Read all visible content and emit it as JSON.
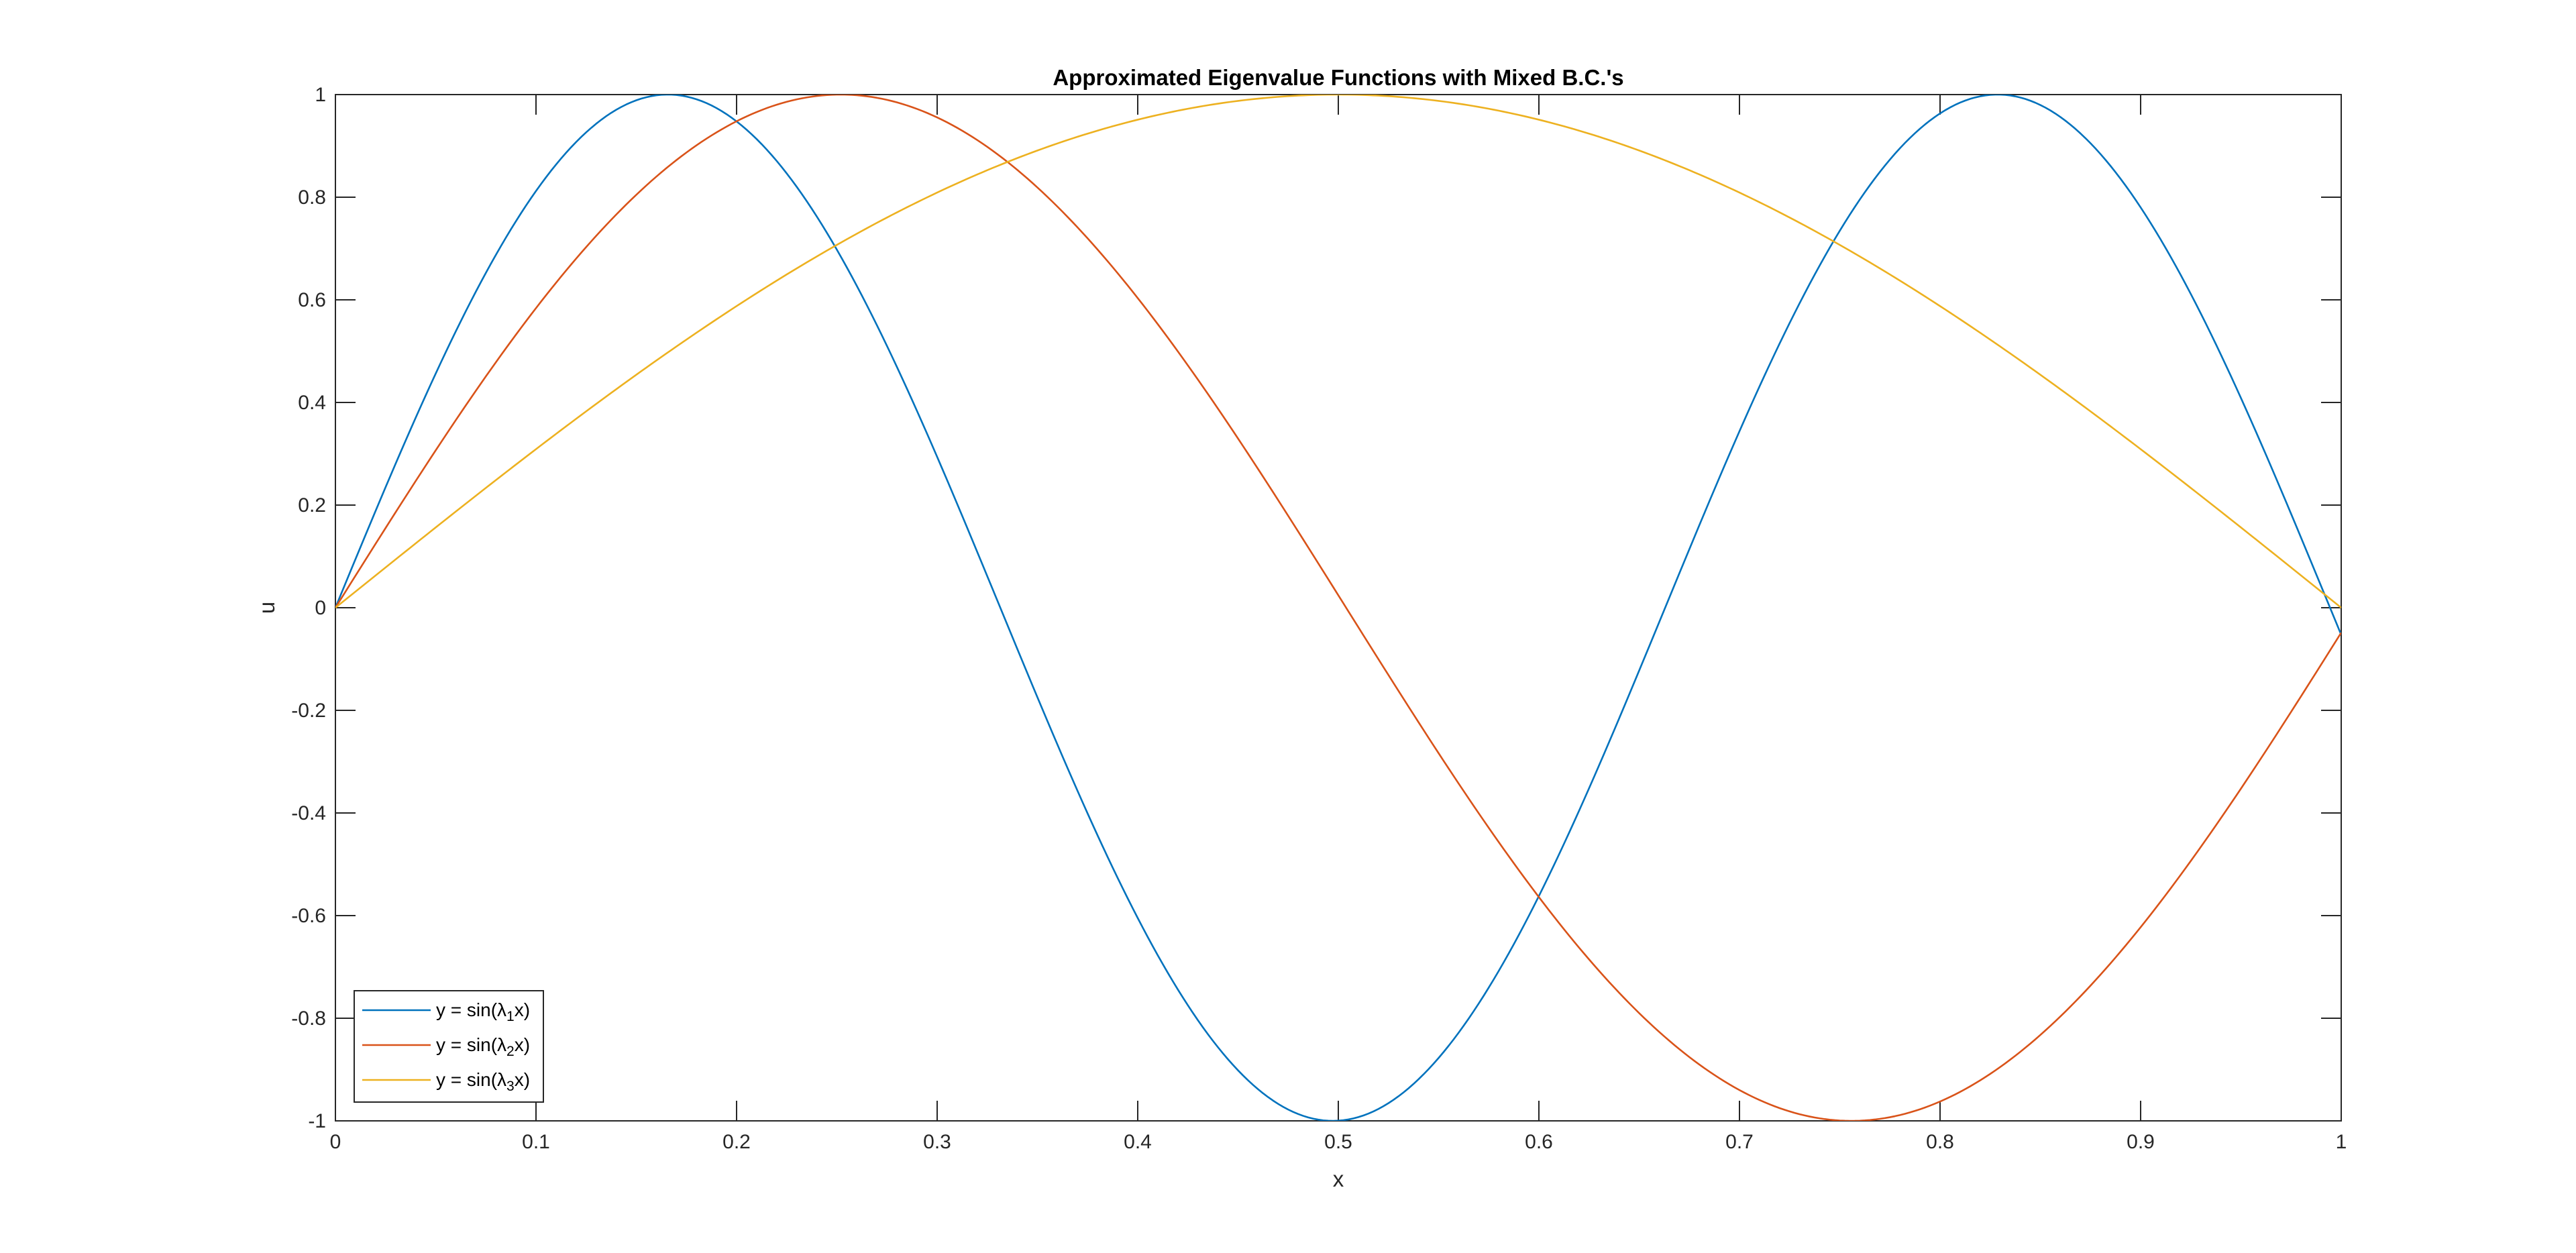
{
  "chart_data": {
    "type": "line",
    "title": "Approximated Eigenvalue Functions with Mixed B.C.'s",
    "xlabel": "x",
    "ylabel": "u",
    "xlim": [
      0,
      1
    ],
    "ylim": [
      -1,
      1
    ],
    "x_ticks": [
      0,
      0.1,
      0.2,
      0.3,
      0.4,
      0.5,
      0.6,
      0.7,
      0.8,
      0.9,
      1
    ],
    "x_tick_labels": [
      "0",
      "0.1",
      "0.2",
      "0.3",
      "0.4",
      "0.5",
      "0.6",
      "0.7",
      "0.8",
      "0.9",
      "1"
    ],
    "y_ticks": [
      -1,
      -0.8,
      -0.6,
      -0.4,
      -0.2,
      0,
      0.2,
      0.4,
      0.6,
      0.8,
      1
    ],
    "y_tick_labels": [
      "-1",
      "-0.8",
      "-0.6",
      "-0.4",
      "-0.2",
      "0",
      "0.2",
      "0.4",
      "0.6",
      "0.8",
      "1"
    ],
    "grid": false,
    "legend_location": "bottom-left",
    "series": [
      {
        "name": "y = sin(λ1x)",
        "legend": {
          "prefix": "y = sin(",
          "symbol": "λ",
          "sub": "1",
          "suffix": "x)"
        },
        "color": "#0072BD",
        "function": "sin(λx)",
        "lambda": 9.4776,
        "x": [
          0,
          0.05,
          0.1,
          0.1657,
          0.2,
          0.25,
          0.3,
          0.35,
          0.4,
          0.45,
          0.4972,
          0.55,
          0.6,
          0.65,
          0.7,
          0.75,
          0.8,
          0.8288,
          0.85,
          0.9,
          0.95,
          1
        ],
        "y": [
          0,
          0.45,
          0.81,
          1.0,
          0.95,
          0.7,
          0.3,
          -0.17,
          -0.6,
          -0.91,
          -1.0,
          -0.89,
          -0.57,
          -0.13,
          0.34,
          0.74,
          0.96,
          1.0,
          0.98,
          0.75,
          0.37,
          -0.05
        ]
      },
      {
        "name": "y = sin(λ2x)",
        "legend": {
          "prefix": "y = sin(",
          "symbol": "λ",
          "sub": "2",
          "suffix": "x)"
        },
        "color": "#D95319",
        "function": "sin(λx)",
        "lambda": 6.2346,
        "x": [
          0,
          0.05,
          0.1,
          0.15,
          0.2,
          0.2519,
          0.3,
          0.35,
          0.4,
          0.45,
          0.5,
          0.55,
          0.6,
          0.65,
          0.7,
          0.7558,
          0.8,
          0.85,
          0.9,
          0.95,
          1
        ],
        "y": [
          0,
          0.31,
          0.58,
          0.8,
          0.95,
          1.0,
          0.95,
          0.82,
          0.6,
          0.32,
          0.03,
          -0.28,
          -0.57,
          -0.78,
          -0.94,
          -1.0,
          -0.96,
          -0.84,
          -0.63,
          -0.36,
          0.05
        ]
      },
      {
        "name": "y = sin(λ3x)",
        "legend": {
          "prefix": "y = sin(",
          "symbol": "λ",
          "sub": "3",
          "suffix": "x)"
        },
        "color": "#EDB120",
        "function": "sin(λx)",
        "lambda": 3.1416,
        "x": [
          0,
          0.1,
          0.2,
          0.3,
          0.4,
          0.5,
          0.6,
          0.7,
          0.8,
          0.9,
          1
        ],
        "y": [
          0,
          0.31,
          0.59,
          0.81,
          0.95,
          1.0,
          0.95,
          0.81,
          0.59,
          0.31,
          0
        ]
      }
    ]
  }
}
